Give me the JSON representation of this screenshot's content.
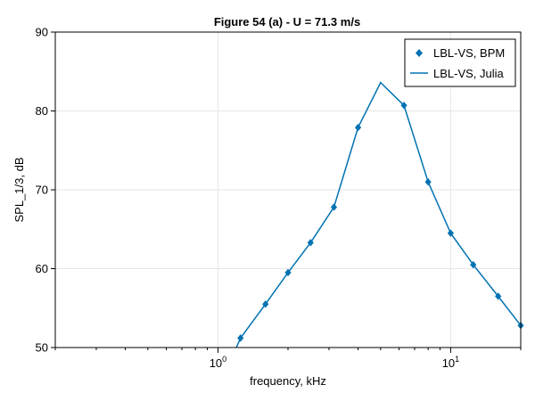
{
  "chart_data": {
    "type": "line",
    "title": "Figure 54 (a) - U = 71.3 m/s",
    "xlabel": "frequency, kHz",
    "ylabel": "SPL_1/3, dB",
    "xscale": "log",
    "xlim": [
      0.2,
      20
    ],
    "ylim": [
      50,
      90
    ],
    "x_ticks": [
      1,
      10
    ],
    "x_tick_labels": [
      {
        "base": "10",
        "exp": "0"
      },
      {
        "base": "10",
        "exp": "1"
      }
    ],
    "y_ticks": [
      50,
      60,
      70,
      80,
      90
    ],
    "y_tick_labels": [
      "50",
      "60",
      "70",
      "80",
      "90"
    ],
    "grid": true,
    "legend_position": "top-right",
    "color": "#0072b2",
    "series": [
      {
        "name": "LBL-VS, BPM",
        "style": "markers",
        "marker": "diamond",
        "x": [
          1.25,
          1.6,
          2.0,
          2.5,
          3.15,
          4.0,
          6.3,
          8.0,
          10.0,
          12.5,
          16.0,
          20.0
        ],
        "y": [
          51.2,
          55.5,
          59.5,
          63.3,
          67.8,
          77.9,
          80.7,
          71.0,
          64.5,
          60.5,
          56.5,
          52.8
        ]
      },
      {
        "name": "LBL-VS, Julia",
        "style": "line",
        "x": [
          1.2,
          1.25,
          1.6,
          2.0,
          2.5,
          3.15,
          4.0,
          5.0,
          6.3,
          8.0,
          10.0,
          12.5,
          16.0,
          20.0
        ],
        "y": [
          50.0,
          51.2,
          55.5,
          59.5,
          63.3,
          67.8,
          77.9,
          83.6,
          80.7,
          71.0,
          64.5,
          60.5,
          56.5,
          52.8
        ]
      }
    ]
  }
}
